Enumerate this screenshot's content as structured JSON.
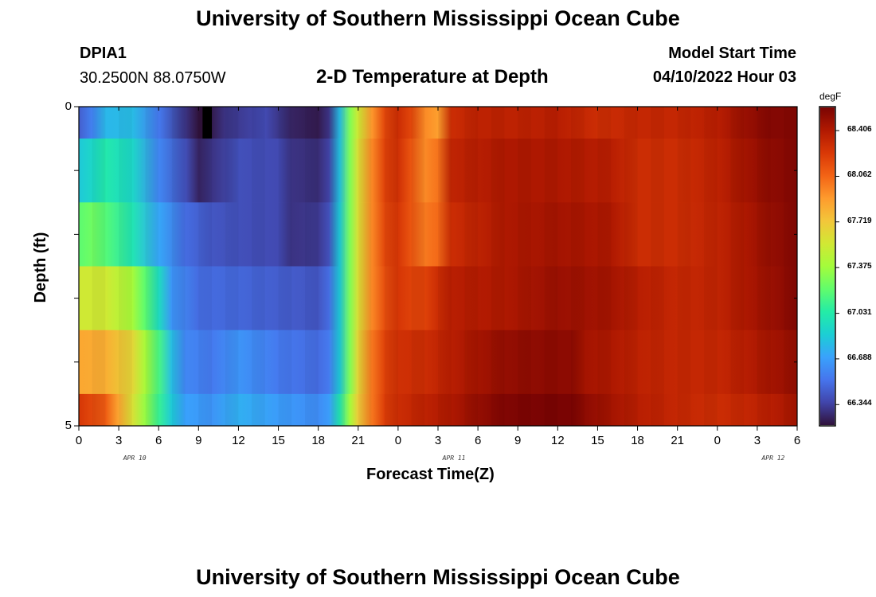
{
  "header": {
    "title": "University of Southern Mississippi Ocean Cube",
    "station_id": "DPIA1",
    "coordinates": "30.2500N  88.0750W",
    "subtitle": "2-D Temperature at Depth",
    "model_start_label": "Model Start Time",
    "model_start_value": "04/10/2022 Hour 03"
  },
  "footer": {
    "title": "University of Southern Mississippi Ocean Cube"
  },
  "chart_data": {
    "type": "heatmap",
    "title": "2-D Temperature at Depth",
    "xlabel": "Forecast Time(Z)",
    "ylabel": "Depth (ft)",
    "units": "degF",
    "x_tick_labels": [
      "0",
      "3",
      "6",
      "9",
      "12",
      "15",
      "18",
      "21",
      "0",
      "3",
      "6",
      "9",
      "12",
      "15",
      "18",
      "21",
      "0",
      "3",
      "6"
    ],
    "x_date_labels": [
      "APR 10",
      "APR 11",
      "APR 12"
    ],
    "y_tick_labels": [
      "0",
      "5"
    ],
    "ylim": [
      0,
      5
    ],
    "colorbar_ticks": [
      "68.406",
      "68.062",
      "67.719",
      "67.375",
      "67.031",
      "66.688",
      "66.344"
    ],
    "colorbar_range": [
      66.19,
      68.58
    ],
    "x_hours_since_apr10_00z": [
      0,
      54
    ],
    "depth_layers_ft": [
      "0-0.5",
      "0.5-1.5",
      "1.5-2.5",
      "2.5-3.5",
      "3.5-4.5",
      "4.5-5"
    ],
    "layer_profiles": [
      [
        [
          0,
          66.45
        ],
        [
          1,
          66.58
        ],
        [
          2,
          66.78
        ],
        [
          4,
          66.8
        ],
        [
          6,
          66.55
        ],
        [
          8,
          66.3
        ],
        [
          9,
          66.18
        ],
        [
          9.5,
          66.1
        ],
        [
          10,
          66.22
        ],
        [
          11,
          66.3
        ],
        [
          14,
          66.38
        ],
        [
          16,
          66.25
        ],
        [
          18,
          66.22
        ],
        [
          18.8,
          66.3
        ],
        [
          19.6,
          66.8
        ],
        [
          20.4,
          67.3
        ],
        [
          21,
          67.55
        ],
        [
          22,
          67.9
        ],
        [
          23,
          68.18
        ],
        [
          24,
          68.3
        ],
        [
          25,
          68.18
        ],
        [
          26,
          67.95
        ],
        [
          27,
          67.88
        ],
        [
          28,
          68.3
        ],
        [
          30,
          68.36
        ],
        [
          33,
          68.36
        ],
        [
          36,
          68.38
        ],
        [
          39,
          68.3
        ],
        [
          42,
          68.33
        ],
        [
          45,
          68.33
        ],
        [
          48,
          68.38
        ],
        [
          50,
          68.48
        ],
        [
          52,
          68.55
        ],
        [
          54,
          68.55
        ]
      ],
      [
        [
          0,
          66.85
        ],
        [
          1,
          66.92
        ],
        [
          2,
          67.02
        ],
        [
          4,
          66.92
        ],
        [
          6,
          66.6
        ],
        [
          8,
          66.4
        ],
        [
          9,
          66.25
        ],
        [
          10,
          66.3
        ],
        [
          12,
          66.4
        ],
        [
          15,
          66.38
        ],
        [
          16,
          66.3
        ],
        [
          18,
          66.28
        ],
        [
          18.8,
          66.35
        ],
        [
          19.6,
          66.82
        ],
        [
          20.4,
          67.3
        ],
        [
          21,
          67.6
        ],
        [
          22,
          67.95
        ],
        [
          23,
          68.2
        ],
        [
          24,
          68.28
        ],
        [
          25,
          68.12
        ],
        [
          26,
          67.95
        ],
        [
          27,
          68.02
        ],
        [
          28,
          68.35
        ],
        [
          32,
          68.42
        ],
        [
          36,
          68.42
        ],
        [
          40,
          68.38
        ],
        [
          42,
          68.3
        ],
        [
          45,
          68.3
        ],
        [
          48,
          68.36
        ],
        [
          50,
          68.45
        ],
        [
          52,
          68.52
        ],
        [
          54,
          68.55
        ]
      ],
      [
        [
          0,
          67.2
        ],
        [
          1,
          67.25
        ],
        [
          2,
          67.18
        ],
        [
          4,
          67.0
        ],
        [
          6,
          66.72
        ],
        [
          8,
          66.5
        ],
        [
          10,
          66.42
        ],
        [
          12,
          66.4
        ],
        [
          15,
          66.38
        ],
        [
          16,
          66.3
        ],
        [
          18,
          66.32
        ],
        [
          18.8,
          66.4
        ],
        [
          19.6,
          66.85
        ],
        [
          20.4,
          67.3
        ],
        [
          21,
          67.6
        ],
        [
          22,
          67.95
        ],
        [
          23,
          68.18
        ],
        [
          24,
          68.25
        ],
        [
          25,
          68.12
        ],
        [
          26,
          68.0
        ],
        [
          27,
          68.05
        ],
        [
          28,
          68.3
        ],
        [
          32,
          68.42
        ],
        [
          36,
          68.45
        ],
        [
          40,
          68.42
        ],
        [
          42,
          68.3
        ],
        [
          45,
          68.3
        ],
        [
          48,
          68.35
        ],
        [
          50,
          68.42
        ],
        [
          52,
          68.5
        ],
        [
          54,
          68.55
        ]
      ],
      [
        [
          0,
          67.55
        ],
        [
          2,
          67.55
        ],
        [
          4,
          67.4
        ],
        [
          5,
          67.2
        ],
        [
          6,
          66.95
        ],
        [
          7,
          66.65
        ],
        [
          9,
          66.5
        ],
        [
          12,
          66.48
        ],
        [
          15,
          66.45
        ],
        [
          18,
          66.42
        ],
        [
          18.8,
          66.5
        ],
        [
          19.6,
          66.85
        ],
        [
          20.4,
          67.3
        ],
        [
          21,
          67.6
        ],
        [
          22,
          67.95
        ],
        [
          23,
          68.15
        ],
        [
          24,
          68.25
        ],
        [
          25,
          68.2
        ],
        [
          26,
          68.2
        ],
        [
          27,
          68.3
        ],
        [
          28,
          68.38
        ],
        [
          32,
          68.42
        ],
        [
          36,
          68.48
        ],
        [
          40,
          68.45
        ],
        [
          42,
          68.38
        ],
        [
          45,
          68.33
        ],
        [
          48,
          68.35
        ],
        [
          50,
          68.42
        ],
        [
          52,
          68.48
        ],
        [
          54,
          68.55
        ]
      ],
      [
        [
          0,
          67.85
        ],
        [
          2,
          67.82
        ],
        [
          4,
          67.65
        ],
        [
          5,
          67.4
        ],
        [
          6,
          67.15
        ],
        [
          7,
          66.8
        ],
        [
          8,
          66.6
        ],
        [
          10,
          66.55
        ],
        [
          12,
          66.65
        ],
        [
          15,
          66.55
        ],
        [
          18,
          66.5
        ],
        [
          18.8,
          66.55
        ],
        [
          19.6,
          66.85
        ],
        [
          20.4,
          67.3
        ],
        [
          21,
          67.65
        ],
        [
          22,
          68.0
        ],
        [
          23,
          68.2
        ],
        [
          24,
          68.28
        ],
        [
          26,
          68.3
        ],
        [
          28,
          68.38
        ],
        [
          30,
          68.45
        ],
        [
          32,
          68.5
        ],
        [
          35,
          68.52
        ],
        [
          37,
          68.52
        ],
        [
          38,
          68.45
        ],
        [
          40,
          68.42
        ],
        [
          42,
          68.36
        ],
        [
          45,
          68.33
        ],
        [
          48,
          68.33
        ],
        [
          50,
          68.38
        ],
        [
          52,
          68.45
        ],
        [
          54,
          68.5
        ]
      ],
      [
        [
          0,
          68.25
        ],
        [
          2,
          68.1
        ],
        [
          3,
          67.85
        ],
        [
          4,
          67.6
        ],
        [
          5,
          67.35
        ],
        [
          6,
          67.1
        ],
        [
          7,
          66.85
        ],
        [
          8,
          66.7
        ],
        [
          10,
          66.65
        ],
        [
          12,
          66.75
        ],
        [
          15,
          66.68
        ],
        [
          18,
          66.62
        ],
        [
          18.8,
          66.68
        ],
        [
          19.6,
          67.0
        ],
        [
          20.4,
          67.4
        ],
        [
          21,
          67.7
        ],
        [
          22,
          68.0
        ],
        [
          23,
          68.22
        ],
        [
          24,
          68.3
        ],
        [
          26,
          68.36
        ],
        [
          28,
          68.42
        ],
        [
          30,
          68.5
        ],
        [
          32,
          68.56
        ],
        [
          35,
          68.58
        ],
        [
          37,
          68.58
        ],
        [
          38,
          68.52
        ],
        [
          40,
          68.45
        ],
        [
          42,
          68.38
        ],
        [
          45,
          68.33
        ],
        [
          48,
          68.3
        ],
        [
          50,
          68.33
        ],
        [
          52,
          68.38
        ],
        [
          54,
          68.45
        ]
      ]
    ],
    "colors": {
      "colormap": [
        "#30123b",
        "#4145ab",
        "#4675ed",
        "#39a2fc",
        "#1bcfd4",
        "#24eca6",
        "#61fc6c",
        "#a4fc3b",
        "#d1e834",
        "#f3c63a",
        "#fe9b2d",
        "#f36315",
        "#d93806",
        "#b11901",
        "#7a0403"
      ],
      "missing_cell": "#000000"
    }
  }
}
